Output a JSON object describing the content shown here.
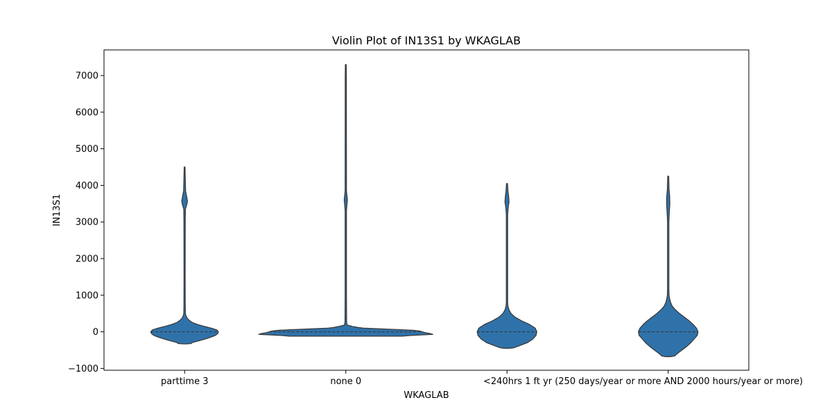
{
  "chart_data": {
    "type": "violin",
    "title": "Violin Plot of IN13S1 by WKAGLAB",
    "xlabel": "WKAGLAB",
    "ylabel": "IN13S1",
    "ylim": [
      -1050,
      7700
    ],
    "yticks": [
      -1000,
      0,
      1000,
      2000,
      3000,
      4000,
      5000,
      6000,
      7000
    ],
    "ytick_labels": [
      "−1000",
      "0",
      "1000",
      "2000",
      "3000",
      "4000",
      "5000",
      "6000",
      "7000"
    ],
    "grid": false,
    "legend": "none",
    "color": "#2f72aa",
    "edge_color": "#3a3a3a",
    "categories": [
      "parttime 3",
      "none 0",
      "<240hrs 1",
      "ft yr (250 days/year or more AND 2000 hours/year or more)"
    ],
    "violins": [
      {
        "category": "parttime 3",
        "median": 0,
        "profile": [
          [
            -330,
            0.02
          ],
          [
            -320,
            0.08
          ],
          [
            -290,
            0.1
          ],
          [
            -250,
            0.17
          ],
          [
            -200,
            0.25
          ],
          [
            -150,
            0.32
          ],
          [
            -100,
            0.38
          ],
          [
            -50,
            0.41
          ],
          [
            0,
            0.42
          ],
          [
            50,
            0.4
          ],
          [
            100,
            0.33
          ],
          [
            150,
            0.24
          ],
          [
            200,
            0.16
          ],
          [
            250,
            0.1
          ],
          [
            300,
            0.065
          ],
          [
            350,
            0.04
          ],
          [
            400,
            0.025
          ],
          [
            450,
            0.015
          ],
          [
            500,
            0.01
          ],
          [
            700,
            0.008
          ],
          [
            1500,
            0.007
          ],
          [
            3000,
            0.008
          ],
          [
            3350,
            0.01
          ],
          [
            3500,
            0.03
          ],
          [
            3580,
            0.035
          ],
          [
            3700,
            0.025
          ],
          [
            3850,
            0.012
          ],
          [
            4100,
            0.009
          ],
          [
            4500,
            0.005
          ]
        ]
      },
      {
        "category": "none 0",
        "median": 0,
        "profile": [
          [
            -120,
            0.7
          ],
          [
            -100,
            0.8
          ],
          [
            -70,
            1.08
          ],
          [
            -50,
            1.05
          ],
          [
            -20,
            0.98
          ],
          [
            0,
            0.95
          ],
          [
            20,
            0.92
          ],
          [
            40,
            0.84
          ],
          [
            60,
            0.65
          ],
          [
            80,
            0.45
          ],
          [
            100,
            0.22
          ],
          [
            120,
            0.15
          ],
          [
            150,
            0.08
          ],
          [
            180,
            0.02
          ],
          [
            250,
            0.01
          ],
          [
            1000,
            0.008
          ],
          [
            3300,
            0.008
          ],
          [
            3500,
            0.015
          ],
          [
            3600,
            0.02
          ],
          [
            3700,
            0.015
          ],
          [
            3850,
            0.008
          ],
          [
            7000,
            0.007
          ],
          [
            7300,
            0.005
          ]
        ]
      },
      {
        "category": "<240hrs 1",
        "median": 0,
        "profile": [
          [
            -450,
            0.03
          ],
          [
            -440,
            0.08
          ],
          [
            -400,
            0.13
          ],
          [
            -350,
            0.19
          ],
          [
            -300,
            0.25
          ],
          [
            -200,
            0.32
          ],
          [
            -100,
            0.36
          ],
          [
            0,
            0.37
          ],
          [
            100,
            0.35
          ],
          [
            200,
            0.28
          ],
          [
            300,
            0.18
          ],
          [
            400,
            0.1
          ],
          [
            500,
            0.05
          ],
          [
            600,
            0.025
          ],
          [
            700,
            0.012
          ],
          [
            800,
            0.008
          ],
          [
            3200,
            0.008
          ],
          [
            3400,
            0.015
          ],
          [
            3550,
            0.025
          ],
          [
            3700,
            0.02
          ],
          [
            3850,
            0.012
          ],
          [
            4050,
            0.006
          ]
        ]
      },
      {
        "category": "ft yr (250 days/year or more AND 2000 hours/year or more)",
        "median": 0,
        "profile": [
          [
            -680,
            0.03
          ],
          [
            -660,
            0.08
          ],
          [
            -600,
            0.11
          ],
          [
            -500,
            0.17
          ],
          [
            -400,
            0.23
          ],
          [
            -300,
            0.28
          ],
          [
            -200,
            0.32
          ],
          [
            -100,
            0.36
          ],
          [
            0,
            0.37
          ],
          [
            100,
            0.35
          ],
          [
            200,
            0.31
          ],
          [
            300,
            0.26
          ],
          [
            400,
            0.2
          ],
          [
            500,
            0.14
          ],
          [
            600,
            0.09
          ],
          [
            700,
            0.05
          ],
          [
            800,
            0.03
          ],
          [
            900,
            0.018
          ],
          [
            1000,
            0.01
          ],
          [
            1200,
            0.008
          ],
          [
            3000,
            0.008
          ],
          [
            3200,
            0.012
          ],
          [
            3500,
            0.02
          ],
          [
            3700,
            0.018
          ],
          [
            3900,
            0.01
          ],
          [
            4250,
            0.006
          ]
        ]
      }
    ]
  }
}
